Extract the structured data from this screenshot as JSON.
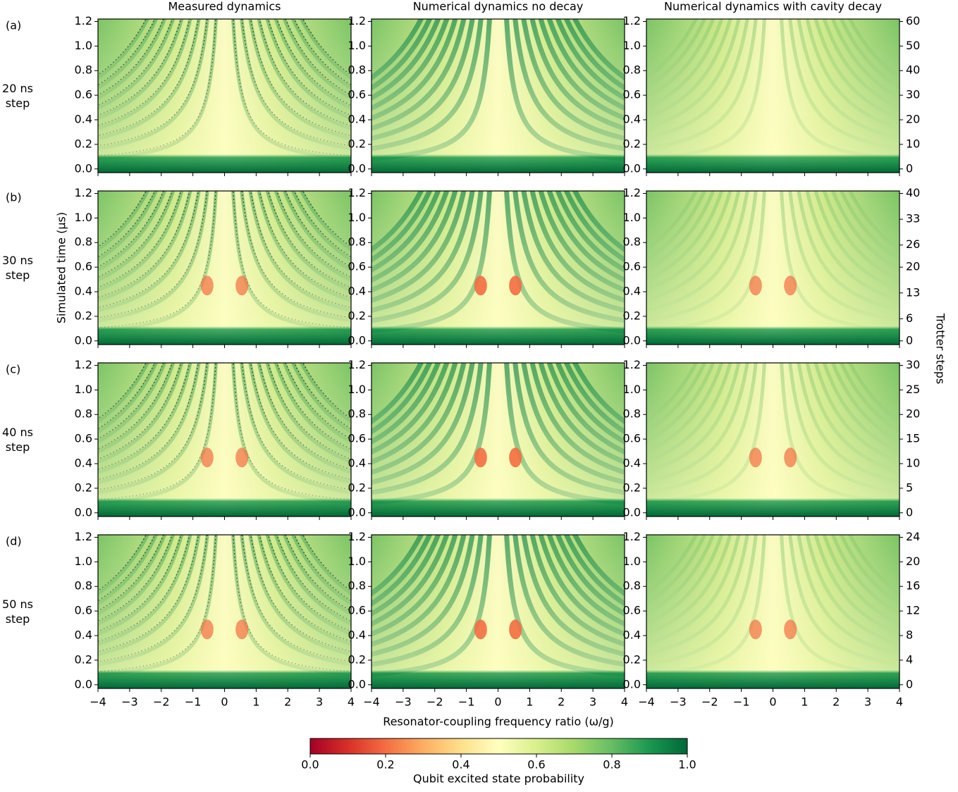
{
  "chart_data": {
    "type": "heatmap",
    "column_titles": [
      "Measured dynamics",
      "Numerical dynamics no decay",
      "Numerical dynamics with cavity decay"
    ],
    "rows": [
      {
        "label": "(a)",
        "step": "20 ns step",
        "y2lim": [
          -1.5,
          61
        ],
        "y2ticks": [
          0,
          10,
          20,
          30,
          40,
          50,
          60
        ]
      },
      {
        "label": "(b)",
        "step": "30 ns step",
        "y2lim": [
          -1,
          40.67
        ],
        "y2ticks": [
          0,
          6,
          13,
          20,
          26,
          33,
          40
        ]
      },
      {
        "label": "(c)",
        "step": "40 ns step",
        "y2lim": [
          -0.75,
          30.5
        ],
        "y2ticks": [
          0,
          5,
          10,
          15,
          20,
          25,
          30
        ]
      },
      {
        "label": "(d)",
        "step": "50 ns step",
        "y2lim": [
          -0.6,
          24.4
        ],
        "y2ticks": [
          0,
          4,
          8,
          12,
          16,
          20,
          24
        ]
      }
    ],
    "ylabel": "Simulated time (μs)",
    "y2label": "Trotter steps",
    "xlabel": "Resonator-coupling frequency ratio (ω/g)",
    "xlim": [
      -4,
      4
    ],
    "xticks": [
      {
        "value": -4,
        "label": "−4"
      },
      {
        "value": -3,
        "label": "−3"
      },
      {
        "value": -2,
        "label": "−2"
      },
      {
        "value": -1,
        "label": "−1"
      },
      0,
      1,
      2,
      3,
      4
    ],
    "ylim": [
      -0.03,
      1.22
    ],
    "yticks": [
      {
        "value": 0,
        "label": "0.0"
      },
      0.2,
      0.4,
      0.6,
      0.8,
      {
        "value": 1,
        "label": "1.0"
      },
      1.2
    ],
    "colorbar": {
      "label": "Qubit excited state probability",
      "clim": [
        0,
        1
      ],
      "ticks": [
        {
          "value": 0,
          "label": "0.0"
        },
        0.2,
        0.4,
        0.6,
        0.8,
        {
          "value": 1,
          "label": "1.0"
        }
      ]
    },
    "colormap": [
      "#a50026",
      "#d73027",
      "#f46d43",
      "#fdae61",
      "#fee08b",
      "#ffffbf",
      "#d9ef8b",
      "#a6d96a",
      "#66bd63",
      "#1a9850",
      "#006837"
    ]
  }
}
